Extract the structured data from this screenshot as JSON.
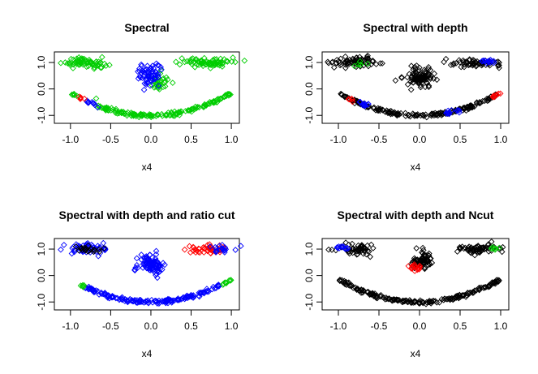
{
  "chart_data": [
    {
      "type": "scatter",
      "title": "Spectral",
      "xlabel": "x4",
      "ylabel": "",
      "xlim": [
        -1.2,
        1.1
      ],
      "ylim": [
        -1.3,
        1.4
      ],
      "xticks": [
        "-1.0",
        "-0.5",
        "0.0",
        "0.5",
        "1.0"
      ],
      "yticks": [
        "-1.0",
        "0.0",
        "1.0"
      ],
      "grid": false,
      "marker": "open-diamond",
      "colors": {
        "black": "#000000",
        "green": "#00cd00",
        "blue": "#0000ff",
        "red": "#ff0000"
      },
      "seed": 101,
      "groups": [
        {
          "color": "green",
          "shape": "cluster",
          "center": [
            -0.82,
            1.0
          ],
          "spread": [
            0.13,
            0.1
          ],
          "n": 70
        },
        {
          "color": "green",
          "shape": "cluster",
          "center": [
            0.73,
            1.0
          ],
          "spread": [
            0.17,
            0.08
          ],
          "n": 75
        },
        {
          "color": "green",
          "shape": "arc",
          "x_range": [
            -0.68,
            1.0
          ],
          "n": 165
        },
        {
          "color": "green",
          "shape": "cluster",
          "center": [
            0.1,
            0.25
          ],
          "spread": [
            0.06,
            0.16
          ],
          "n": 35
        },
        {
          "color": "blue",
          "shape": "cluster",
          "center": [
            0.0,
            0.52
          ],
          "spread": [
            0.07,
            0.18
          ],
          "n": 70
        },
        {
          "color": "blue",
          "shape": "arc",
          "x_range": [
            -0.8,
            -0.65
          ],
          "n": 14
        },
        {
          "color": "red",
          "shape": "arc",
          "x_range": [
            -0.92,
            -0.82
          ],
          "n": 6
        },
        {
          "color": "green",
          "shape": "arc",
          "x_range": [
            -1.0,
            -0.92
          ],
          "n": 6
        },
        {
          "color": "green",
          "shape": "points",
          "points": [
            [
              -1.12,
              0.98
            ],
            [
              0.42,
              1.02
            ],
            [
              -0.68,
              -0.36
            ]
          ]
        }
      ]
    },
    {
      "type": "scatter",
      "title": "Spectral with depth",
      "xlabel": "x4",
      "ylabel": "",
      "xlim": [
        -1.2,
        1.1
      ],
      "ylim": [
        -1.3,
        1.4
      ],
      "xticks": [
        "-1.0",
        "-0.5",
        "0.0",
        "0.5",
        "1.0"
      ],
      "yticks": [
        "-1.0",
        "0.0",
        "1.0"
      ],
      "grid": false,
      "marker": "open-diamond",
      "colors": {
        "black": "#000000",
        "green": "#00cd00",
        "blue": "#0000ff",
        "red": "#ff0000"
      },
      "seed": 202,
      "groups": [
        {
          "color": "black",
          "shape": "cluster",
          "center": [
            -0.8,
            1.02
          ],
          "spread": [
            0.14,
            0.1
          ],
          "n": 70
        },
        {
          "color": "green",
          "shape": "cluster",
          "center": [
            -0.72,
            0.9
          ],
          "spread": [
            0.04,
            0.05
          ],
          "n": 6
        },
        {
          "color": "black",
          "shape": "cluster",
          "center": [
            0.72,
            0.98
          ],
          "spread": [
            0.16,
            0.08
          ],
          "n": 60
        },
        {
          "color": "blue",
          "shape": "cluster",
          "center": [
            0.82,
            1.05
          ],
          "spread": [
            0.07,
            0.04
          ],
          "n": 14
        },
        {
          "color": "black",
          "shape": "cluster",
          "center": [
            0.0,
            0.45
          ],
          "spread": [
            0.09,
            0.2
          ],
          "n": 100
        },
        {
          "color": "black",
          "shape": "arc",
          "x_range": [
            -1.0,
            0.95
          ],
          "n": 190
        },
        {
          "color": "blue",
          "shape": "arc",
          "x_range": [
            -0.75,
            -0.62
          ],
          "n": 10
        },
        {
          "color": "blue",
          "shape": "arc",
          "x_range": [
            0.33,
            0.5
          ],
          "n": 14
        },
        {
          "color": "red",
          "shape": "arc",
          "x_range": [
            -0.9,
            -0.82
          ],
          "n": 5
        },
        {
          "color": "red",
          "shape": "arc",
          "x_range": [
            0.88,
            1.0
          ],
          "n": 10
        },
        {
          "color": "black",
          "shape": "points",
          "points": [
            [
              -1.12,
              0.98
            ],
            [
              0.3,
              1.02
            ]
          ]
        }
      ]
    },
    {
      "type": "scatter",
      "title": "Spectral with depth and ratio cut",
      "xlabel": "x4",
      "ylabel": "",
      "xlim": [
        -1.2,
        1.1
      ],
      "ylim": [
        -1.3,
        1.4
      ],
      "xticks": [
        "-1.0",
        "-0.5",
        "0.0",
        "0.5",
        "1.0"
      ],
      "yticks": [
        "-1.0",
        "0.0",
        "1.0"
      ],
      "grid": false,
      "marker": "open-diamond",
      "colors": {
        "black": "#000000",
        "green": "#00cd00",
        "blue": "#0000ff",
        "red": "#ff0000"
      },
      "seed": 303,
      "groups": [
        {
          "color": "blue",
          "shape": "cluster",
          "center": [
            -0.82,
            1.02
          ],
          "spread": [
            0.14,
            0.1
          ],
          "n": 60
        },
        {
          "color": "black",
          "shape": "cluster",
          "center": [
            -0.78,
            1.0
          ],
          "spread": [
            0.07,
            0.07
          ],
          "n": 20
        },
        {
          "color": "red",
          "shape": "cluster",
          "center": [
            0.7,
            1.0
          ],
          "spread": [
            0.12,
            0.07
          ],
          "n": 45
        },
        {
          "color": "blue",
          "shape": "cluster",
          "center": [
            0.88,
            1.0
          ],
          "spread": [
            0.08,
            0.06
          ],
          "n": 20
        },
        {
          "color": "blue",
          "shape": "cluster",
          "center": [
            0.0,
            0.45
          ],
          "spread": [
            0.08,
            0.2
          ],
          "n": 95
        },
        {
          "color": "blue",
          "shape": "arc",
          "x_range": [
            -0.82,
            0.85
          ],
          "n": 180
        },
        {
          "color": "green",
          "shape": "arc",
          "x_range": [
            -0.92,
            -0.83
          ],
          "n": 5
        },
        {
          "color": "green",
          "shape": "arc",
          "x_range": [
            0.88,
            1.0
          ],
          "n": 10
        },
        {
          "color": "blue",
          "shape": "points",
          "points": [
            [
              -1.12,
              0.98
            ]
          ]
        },
        {
          "color": "red",
          "shape": "points",
          "points": [
            [
              0.42,
              0.98
            ]
          ]
        }
      ]
    },
    {
      "type": "scatter",
      "title": "Spectral with depth and Ncut",
      "xlabel": "x4",
      "ylabel": "",
      "xlim": [
        -1.2,
        1.1
      ],
      "ylim": [
        -1.3,
        1.4
      ],
      "xticks": [
        "-1.0",
        "-0.5",
        "0.0",
        "0.5",
        "1.0"
      ],
      "yticks": [
        "-1.0",
        "0.0",
        "1.0"
      ],
      "grid": false,
      "marker": "open-diamond",
      "colors": {
        "black": "#000000",
        "green": "#00cd00",
        "blue": "#0000ff",
        "red": "#ff0000"
      },
      "seed": 404,
      "groups": [
        {
          "color": "black",
          "shape": "cluster",
          "center": [
            -0.78,
            1.0
          ],
          "spread": [
            0.13,
            0.1
          ],
          "n": 55
        },
        {
          "color": "blue",
          "shape": "cluster",
          "center": [
            -0.95,
            1.05
          ],
          "spread": [
            0.05,
            0.04
          ],
          "n": 12
        },
        {
          "color": "black",
          "shape": "cluster",
          "center": [
            0.72,
            1.0
          ],
          "spread": [
            0.15,
            0.08
          ],
          "n": 60
        },
        {
          "color": "green",
          "shape": "cluster",
          "center": [
            0.93,
            1.02
          ],
          "spread": [
            0.04,
            0.04
          ],
          "n": 8
        },
        {
          "color": "black",
          "shape": "cluster",
          "center": [
            0.02,
            0.55
          ],
          "spread": [
            0.07,
            0.17
          ],
          "n": 70
        },
        {
          "color": "red",
          "shape": "cluster",
          "center": [
            -0.05,
            0.3
          ],
          "spread": [
            0.05,
            0.06
          ],
          "n": 18
        },
        {
          "color": "black",
          "shape": "arc",
          "x_range": [
            -1.0,
            1.0
          ],
          "n": 200
        },
        {
          "color": "black",
          "shape": "points",
          "points": [
            [
              -1.12,
              0.98
            ],
            [
              0.5,
              1.0
            ]
          ]
        }
      ]
    }
  ]
}
